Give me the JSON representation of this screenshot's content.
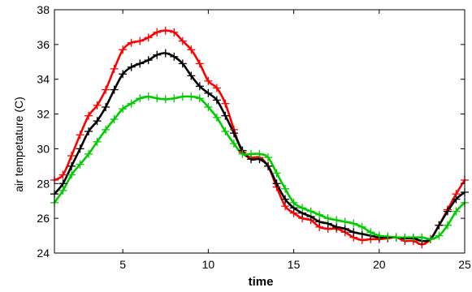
{
  "chart_data": {
    "type": "line",
    "title": "",
    "xlabel": "time",
    "ylabel": "air tempetature (C)",
    "xlim": [
      1,
      25
    ],
    "ylim": [
      24,
      38
    ],
    "xticks": [
      5,
      10,
      15,
      20,
      25
    ],
    "yticks": [
      24,
      26,
      28,
      30,
      32,
      34,
      36,
      38
    ],
    "grid": false,
    "marker": "+",
    "series": [
      {
        "color": "#ff0000",
        "x": [
          1,
          1.5,
          2,
          2.5,
          3,
          3.5,
          4,
          4.5,
          5,
          5.5,
          6,
          6.5,
          7,
          7.5,
          8,
          8.5,
          9,
          9.5,
          10,
          10.5,
          11,
          11.5,
          12,
          12.5,
          13,
          13.5,
          14,
          14.5,
          15,
          15.5,
          16,
          16.5,
          17,
          17.5,
          18,
          18.5,
          19,
          19.5,
          20,
          20.5,
          21,
          21.5,
          22,
          22.5,
          23,
          23.5,
          24,
          24.5,
          25
        ],
        "y": [
          28.2,
          28.5,
          29.6,
          30.8,
          31.9,
          32.5,
          33.4,
          34.6,
          35.7,
          36.1,
          36.2,
          36.4,
          36.7,
          36.8,
          36.7,
          36.2,
          35.7,
          34.9,
          33.9,
          33.5,
          32.6,
          31.1,
          29.8,
          29.5,
          29.5,
          29.0,
          27.8,
          26.7,
          26.3,
          26.0,
          25.9,
          25.5,
          25.4,
          25.4,
          25.2,
          24.9,
          24.75,
          24.8,
          24.8,
          24.85,
          24.9,
          24.7,
          24.7,
          24.5,
          24.8,
          25.6,
          26.5,
          27.4,
          28.2
        ]
      },
      {
        "color": "#000000",
        "x": [
          1,
          1.5,
          2,
          2.5,
          3,
          3.5,
          4,
          4.5,
          5,
          5.5,
          6,
          6.5,
          7,
          7.5,
          8,
          8.5,
          9,
          9.5,
          10,
          10.5,
          11,
          11.5,
          12,
          12.5,
          13,
          13.5,
          14,
          14.5,
          15,
          15.5,
          16,
          16.5,
          17,
          17.5,
          18,
          18.5,
          19,
          19.5,
          20,
          20.5,
          21,
          21.5,
          22,
          22.5,
          23,
          23.5,
          24,
          24.5,
          25
        ],
        "y": [
          27.4,
          28.0,
          29.0,
          30.0,
          31.0,
          31.6,
          32.4,
          33.4,
          34.3,
          34.7,
          34.9,
          35.1,
          35.4,
          35.5,
          35.3,
          34.9,
          34.2,
          33.6,
          33.2,
          32.8,
          31.9,
          30.9,
          29.9,
          29.4,
          29.4,
          29.0,
          28.0,
          27.1,
          26.6,
          26.3,
          26.1,
          25.8,
          25.7,
          25.5,
          25.4,
          25.2,
          25.1,
          25.0,
          24.9,
          24.9,
          24.9,
          24.85,
          24.85,
          24.7,
          24.8,
          25.6,
          26.4,
          27.1,
          27.5
        ]
      },
      {
        "color": "#00cc00",
        "x": [
          1,
          1.5,
          2,
          2.5,
          3,
          3.5,
          4,
          4.5,
          5,
          5.5,
          6,
          6.5,
          7,
          7.5,
          8,
          8.5,
          9,
          9.5,
          10,
          10.5,
          11,
          11.5,
          12,
          12.5,
          13,
          13.5,
          14,
          14.5,
          15,
          15.5,
          16,
          16.5,
          17,
          17.5,
          18,
          18.5,
          19,
          19.5,
          20,
          20.5,
          21,
          21.5,
          22,
          22.5,
          23,
          23.5,
          24,
          24.5,
          25
        ],
        "y": [
          26.9,
          27.6,
          28.5,
          29.1,
          29.7,
          30.4,
          31.1,
          31.7,
          32.3,
          32.6,
          32.9,
          33.0,
          32.9,
          32.85,
          32.9,
          33.0,
          33.0,
          32.9,
          32.4,
          31.8,
          31.0,
          30.3,
          29.7,
          29.7,
          29.7,
          29.5,
          28.6,
          27.7,
          26.9,
          26.6,
          26.4,
          26.2,
          26.0,
          25.9,
          25.8,
          25.7,
          25.5,
          25.2,
          25.0,
          24.95,
          24.9,
          24.9,
          24.9,
          24.9,
          24.8,
          25.0,
          25.6,
          26.4,
          26.9
        ]
      }
    ]
  }
}
